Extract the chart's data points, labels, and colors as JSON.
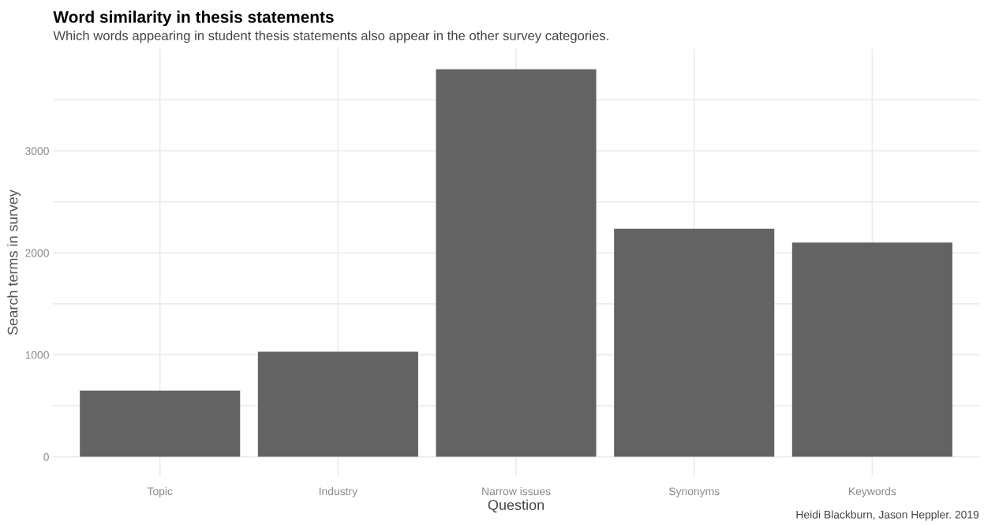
{
  "chart_data": {
    "type": "bar",
    "title": "Word similarity in thesis statements",
    "subtitle": "Which words appearing in student thesis statements also appear in the other survey categories.",
    "xlabel": "Question",
    "ylabel": "Search terms in survey",
    "categories": [
      "Topic",
      "Industry",
      "Narrow issues",
      "Synonyms",
      "Keywords"
    ],
    "values": [
      650,
      1030,
      3800,
      2235,
      2100
    ],
    "color": "#636363",
    "ylim": [
      -190,
      4000
    ],
    "yticks": [
      0,
      {
        "value": 500,
        "label": null
      },
      1000,
      {
        "value": 1500,
        "label": null
      },
      2000,
      {
        "value": 2500,
        "label": null
      },
      3000,
      {
        "value": 3500,
        "label": null
      }
    ],
    "grid": true,
    "annotations": [
      "Heidi Blackburn, Jason Heppler. 2019"
    ]
  }
}
